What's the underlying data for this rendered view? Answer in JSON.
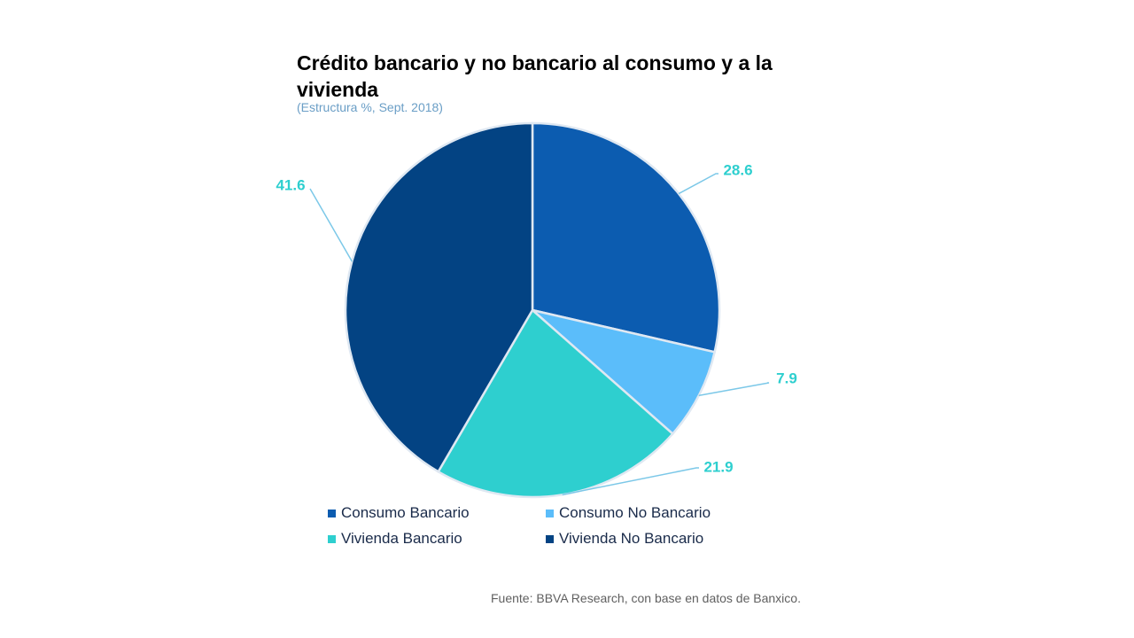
{
  "chart_data": {
    "type": "pie",
    "title": "Crédito bancario y no bancario al consumo y a la vivienda",
    "subtitle": "(Estructura  %, Sept. 2018)",
    "slices": [
      {
        "name": "Consumo Bancario",
        "value": 28.6,
        "label": "28.6",
        "color": "#0c5cb0"
      },
      {
        "name": "Consumo No Bancario",
        "value": 7.9,
        "label": "7.9",
        "color": "#5bbdfa"
      },
      {
        "name": "Vivienda Bancario",
        "value": 21.9,
        "label": "21.9",
        "color": "#2ecfcf"
      },
      {
        "name": "Vivienda No Bancario",
        "value": 41.6,
        "label": "41.6",
        "color": "#034383"
      }
    ],
    "legend": [
      "Consumo Bancario",
      "Consumo No Bancario",
      "Vivienda Bancario",
      "Vivienda No Bancario"
    ],
    "legend_placement": "bottom",
    "data_label_color": "#2ecfcf",
    "leader_line_color": "#7cc8e8"
  },
  "source": "Fuente: BBVA Research, con base en datos de Banxico."
}
